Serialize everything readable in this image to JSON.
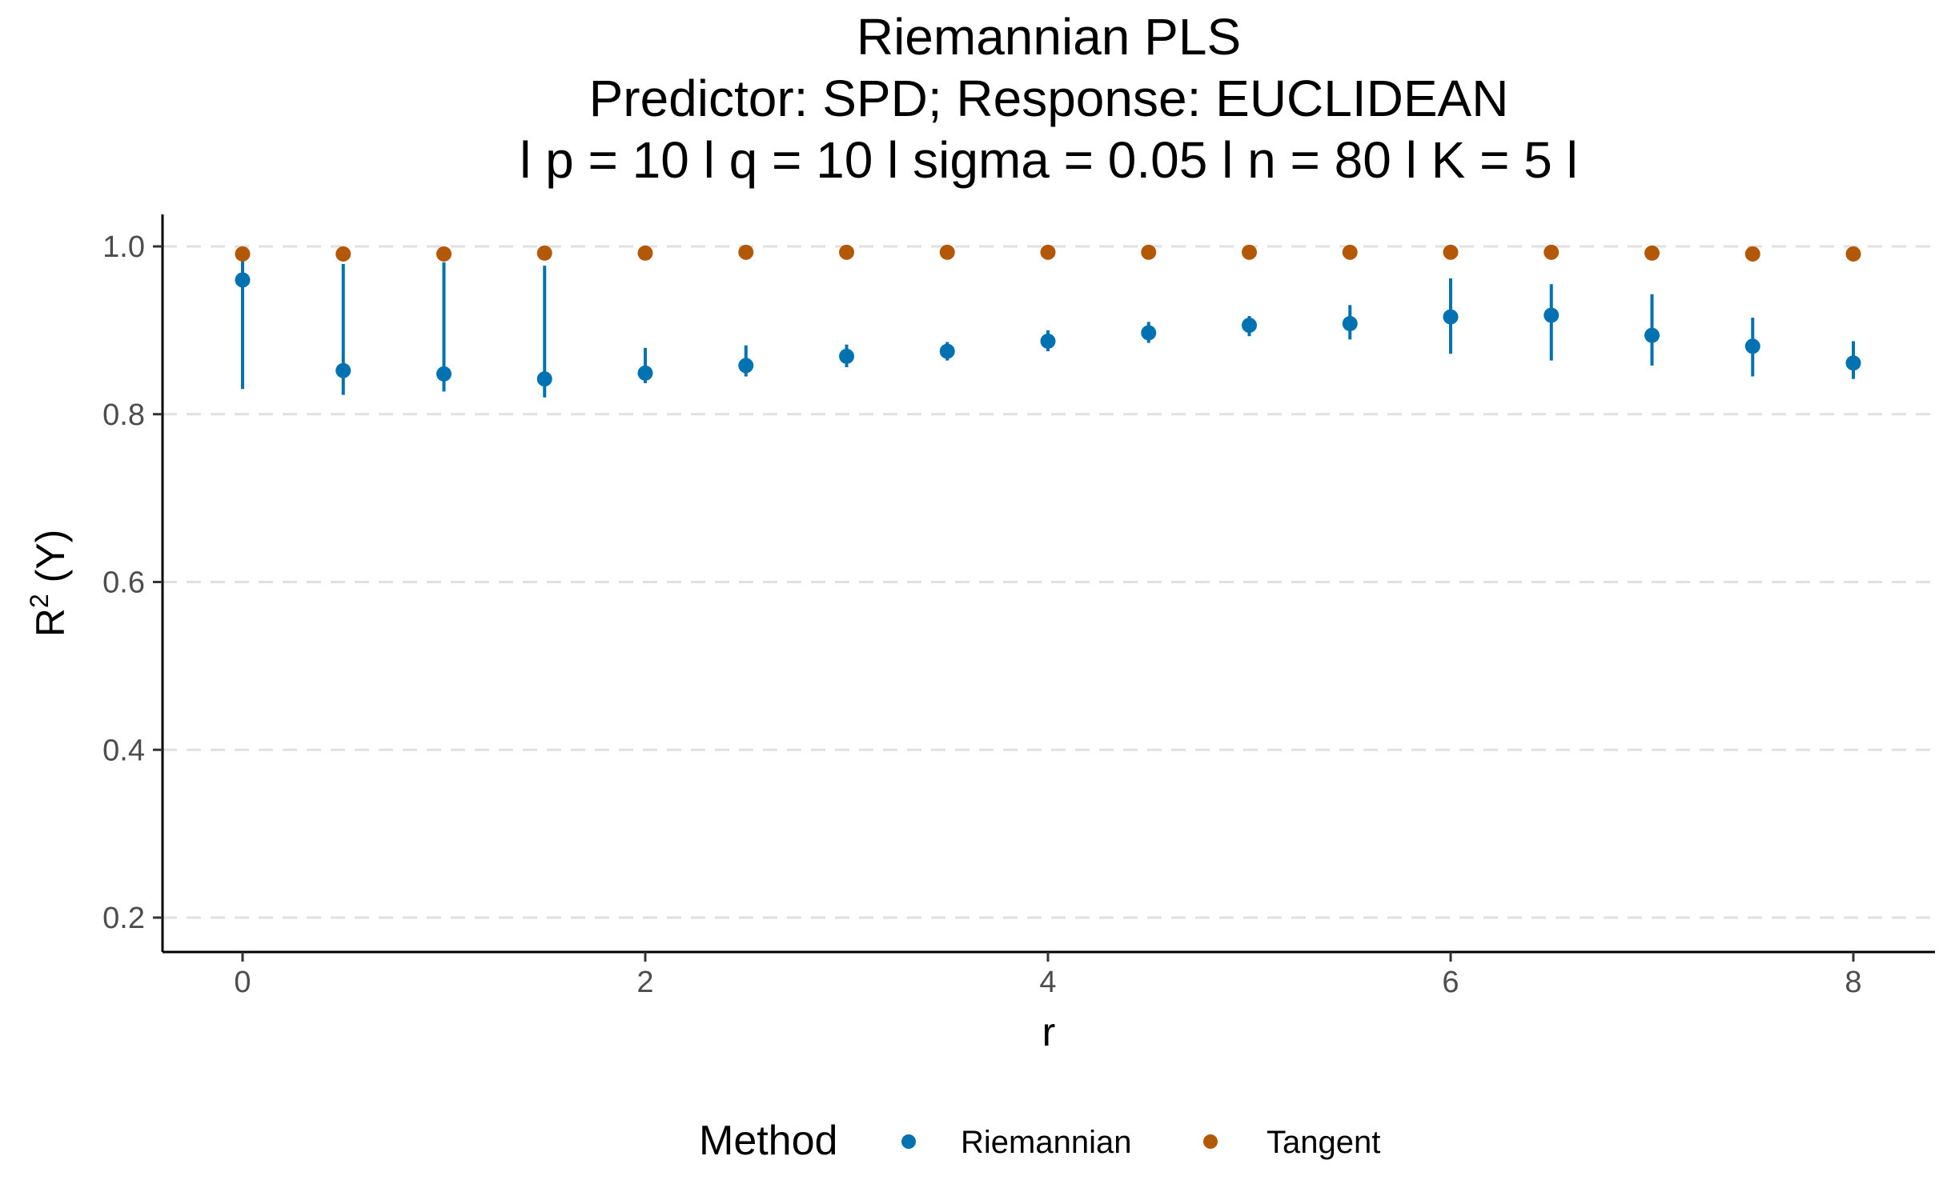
{
  "chart_data": {
    "type": "scatter",
    "title_lines": [
      "Riemannian PLS",
      "Predictor: SPD; Response: EUCLIDEAN",
      "l p = 10 l q = 10 l sigma = 0.05 l n = 80 l K = 5 l"
    ],
    "xlabel": "r",
    "ylabel_main": "R",
    "ylabel_sup": "2",
    "ylabel_rest": " (Y)",
    "xlim": [
      -0.4,
      8.4
    ],
    "ylim": [
      0.16,
      1.04
    ],
    "xticks": [
      0,
      2,
      4,
      6,
      8
    ],
    "xtick_labels": [
      "0",
      "2",
      "4",
      "6",
      "8"
    ],
    "yticks": [
      0.2,
      0.4,
      0.6,
      0.8,
      1.0
    ],
    "ytick_labels": [
      "0.2",
      "0.4",
      "0.6",
      "0.8",
      "1.0"
    ],
    "grid": "horizontal-dashed",
    "legend": {
      "position": "bottom",
      "title": "Method",
      "entries": [
        "Riemannian",
        "Tangent"
      ]
    },
    "series": [
      {
        "name": "Riemannian",
        "color": "#0072B2",
        "x": [
          0,
          0.5,
          1,
          1.5,
          2,
          2.5,
          3,
          3.5,
          4,
          4.5,
          5,
          5.5,
          6,
          6.5,
          7,
          7.5,
          8
        ],
        "y": [
          0.96,
          0.852,
          0.848,
          0.842,
          0.849,
          0.858,
          0.869,
          0.875,
          0.887,
          0.897,
          0.906,
          0.908,
          0.916,
          0.918,
          0.894,
          0.881,
          0.861
        ],
        "ymin": [
          0.83,
          0.823,
          0.827,
          0.82,
          0.837,
          0.845,
          0.856,
          0.864,
          0.875,
          0.885,
          0.893,
          0.889,
          0.872,
          0.864,
          0.858,
          0.845,
          0.842
        ],
        "ymax": [
          0.985,
          0.979,
          0.981,
          0.977,
          0.879,
          0.882,
          0.883,
          0.886,
          0.9,
          0.91,
          0.917,
          0.93,
          0.962,
          0.955,
          0.943,
          0.915,
          0.887
        ]
      },
      {
        "name": "Tangent",
        "color": "#B35806",
        "x": [
          0,
          0.5,
          1,
          1.5,
          2,
          2.5,
          3,
          3.5,
          4,
          4.5,
          5,
          5.5,
          6,
          6.5,
          7,
          7.5,
          8
        ],
        "y": [
          0.991,
          0.991,
          0.991,
          0.992,
          0.992,
          0.993,
          0.993,
          0.993,
          0.993,
          0.993,
          0.993,
          0.993,
          0.993,
          0.993,
          0.992,
          0.991,
          0.991
        ]
      }
    ]
  }
}
